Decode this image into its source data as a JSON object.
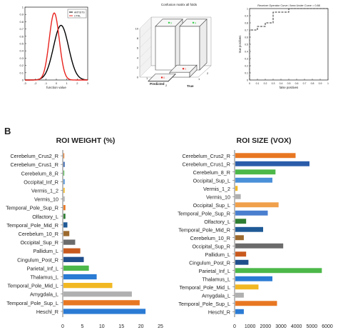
{
  "panel_letter": "B",
  "chart_data": [
    {
      "type": "line",
      "xlabel": "function value",
      "ylabel": "",
      "xlim": [
        -3,
        3
      ],
      "ylim": [
        0,
        1
      ],
      "xticks": [
        -3,
        -2,
        -1,
        0,
        1,
        2,
        3
      ],
      "yticks": [
        0,
        0.1,
        0.2,
        0.3,
        0.4,
        0.5,
        0.6,
        0.7,
        0.8,
        0.9,
        1
      ],
      "legend": "top-right",
      "series": [
        {
          "name": "ARTISTS",
          "color": "#000000",
          "mean": 0.45,
          "peak": 0.75,
          "sd": 0.72
        },
        {
          "name": "CTRL",
          "color": "#e8231e",
          "mean": -0.2,
          "peak": 0.92,
          "sd": 0.48
        }
      ]
    },
    {
      "type": "bar",
      "title": "Confusion matrix all folds",
      "xlabel": "Predicted",
      "ylabel": "True",
      "ylim": [
        0,
        10
      ],
      "yticks": [
        0,
        2,
        4,
        6,
        8,
        10
      ],
      "xticks": [
        "1",
        "2"
      ],
      "cells": [
        {
          "true": 1,
          "predicted": 1,
          "value": 9,
          "color": "#2ecc40"
        },
        {
          "true": 2,
          "predicted": 2,
          "value": 9,
          "color": "#2ecc40"
        },
        {
          "true": 1,
          "predicted": 2,
          "value": 1,
          "color": "#e8231e"
        },
        {
          "true": 2,
          "predicted": 1,
          "value": 0,
          "color": "#e8231e"
        }
      ]
    },
    {
      "type": "line",
      "title": "Receiver Operator Curve / Area Under Curve = 0.88",
      "xlabel": "false positives",
      "ylabel": "true positives",
      "xlim": [
        0,
        1
      ],
      "ylim": [
        0,
        1
      ],
      "xticks": [
        0,
        0.1,
        0.2,
        0.3,
        0.4,
        0.5,
        0.6,
        0.7,
        0.8,
        0.9,
        1
      ],
      "yticks": [
        0,
        0.1,
        0.2,
        0.3,
        0.4,
        0.5,
        0.6,
        0.7,
        0.8,
        0.9,
        1
      ],
      "series": [
        {
          "x": [
            0,
            0,
            0.1,
            0.1,
            0.2,
            0.2,
            0.3,
            0.3,
            0.5,
            0.5,
            1
          ],
          "y": [
            0,
            0.7,
            0.7,
            0.75,
            0.75,
            0.8,
            0.8,
            0.95,
            0.95,
            1,
            1
          ]
        }
      ]
    },
    {
      "type": "bar",
      "orientation": "horizontal",
      "title": "ROI WEIGHT (%)",
      "categories": [
        "Cerebelum_Crus2_R",
        "Cerebelum_Crus1_R",
        "Cerebelum_8_R",
        "Occipital_Inf_R",
        "Vermis_1_2",
        "Vermis_10",
        "Temporal_Pole_Sup_R",
        "Olfactory_L",
        "Temporal_Pole_Mid_R",
        "Cerebelum_10_R",
        "Occipital_Sup_R",
        "Pallidum_L",
        "Cingulum_Post_R",
        "Parietal_Inf_L",
        "Thalamus_L",
        "Temporal_Pole_Mid_L",
        "Amygdala_L",
        "Temporal_Pole_Sup_L",
        "Heschl_R"
      ],
      "values": [
        0.2,
        0.3,
        0.2,
        0.3,
        0.3,
        0.3,
        0.5,
        0.5,
        1,
        1.5,
        3,
        4.3,
        5.2,
        6.5,
        8.5,
        12.5,
        17.5,
        19.5,
        21
      ],
      "colors": [
        "#e87722",
        "#2a5caa",
        "#4cb849",
        "#4a90d9",
        "#f2b824",
        "#b0b0b0",
        "#e87722",
        "#2e7d32",
        "#1f5a96",
        "#9c6a2e",
        "#6b6b6b",
        "#c85a1e",
        "#1f4e8c",
        "#4cb849",
        "#2a7bd4",
        "#f2b824",
        "#b0b0b0",
        "#e87722",
        "#2a7bd4"
      ],
      "xlim": [
        0,
        25
      ],
      "xticks": [
        0,
        5,
        10,
        15,
        20,
        25
      ]
    },
    {
      "type": "bar",
      "orientation": "horizontal",
      "title": "ROI  SIZE (VOX)",
      "categories": [
        "Cerebelum_Crus2_R",
        "Cerebelum_Crus1_R",
        "Cerebelum_8_R",
        "Occipital_Sup_L",
        "Vermis_1_2",
        "Vermis_10",
        "Occipital_Sup_L",
        "Temporal_Pole_Sup_R",
        "Olfactory_L",
        "Temporal_Pole_Mid_R",
        "Cerebelum_10_R",
        "Occipital_Sup_R",
        "Pallidum_L",
        "Cingulum_Post_R",
        "Parietal_Inf_L",
        "Thalamus_L",
        "Temporal_Pole_Mid_L",
        "Amygdala_L",
        "Temporal_Pole_Sup_L",
        "Heschl_R"
      ],
      "values": [
        3900,
        4800,
        2600,
        2400,
        150,
        350,
        2800,
        2100,
        700,
        1800,
        550,
        3100,
        700,
        850,
        5600,
        2400,
        1500,
        550,
        2700,
        550
      ],
      "colors": [
        "#e87722",
        "#2a5caa",
        "#4cb849",
        "#4a90d9",
        "#f2b824",
        "#b0b0b0",
        "#f0a04b",
        "#4a7fd0",
        "#2e7d32",
        "#1f5a96",
        "#9c6a2e",
        "#6b6b6b",
        "#c85a1e",
        "#1f4e8c",
        "#4cb849",
        "#2a7bd4",
        "#f2b824",
        "#b0b0b0",
        "#e87722",
        "#2a7bd4"
      ],
      "xlim": [
        0,
        6000
      ],
      "xticks": [
        0,
        1000,
        2000,
        3000,
        4000,
        5000,
        6000
      ]
    }
  ]
}
